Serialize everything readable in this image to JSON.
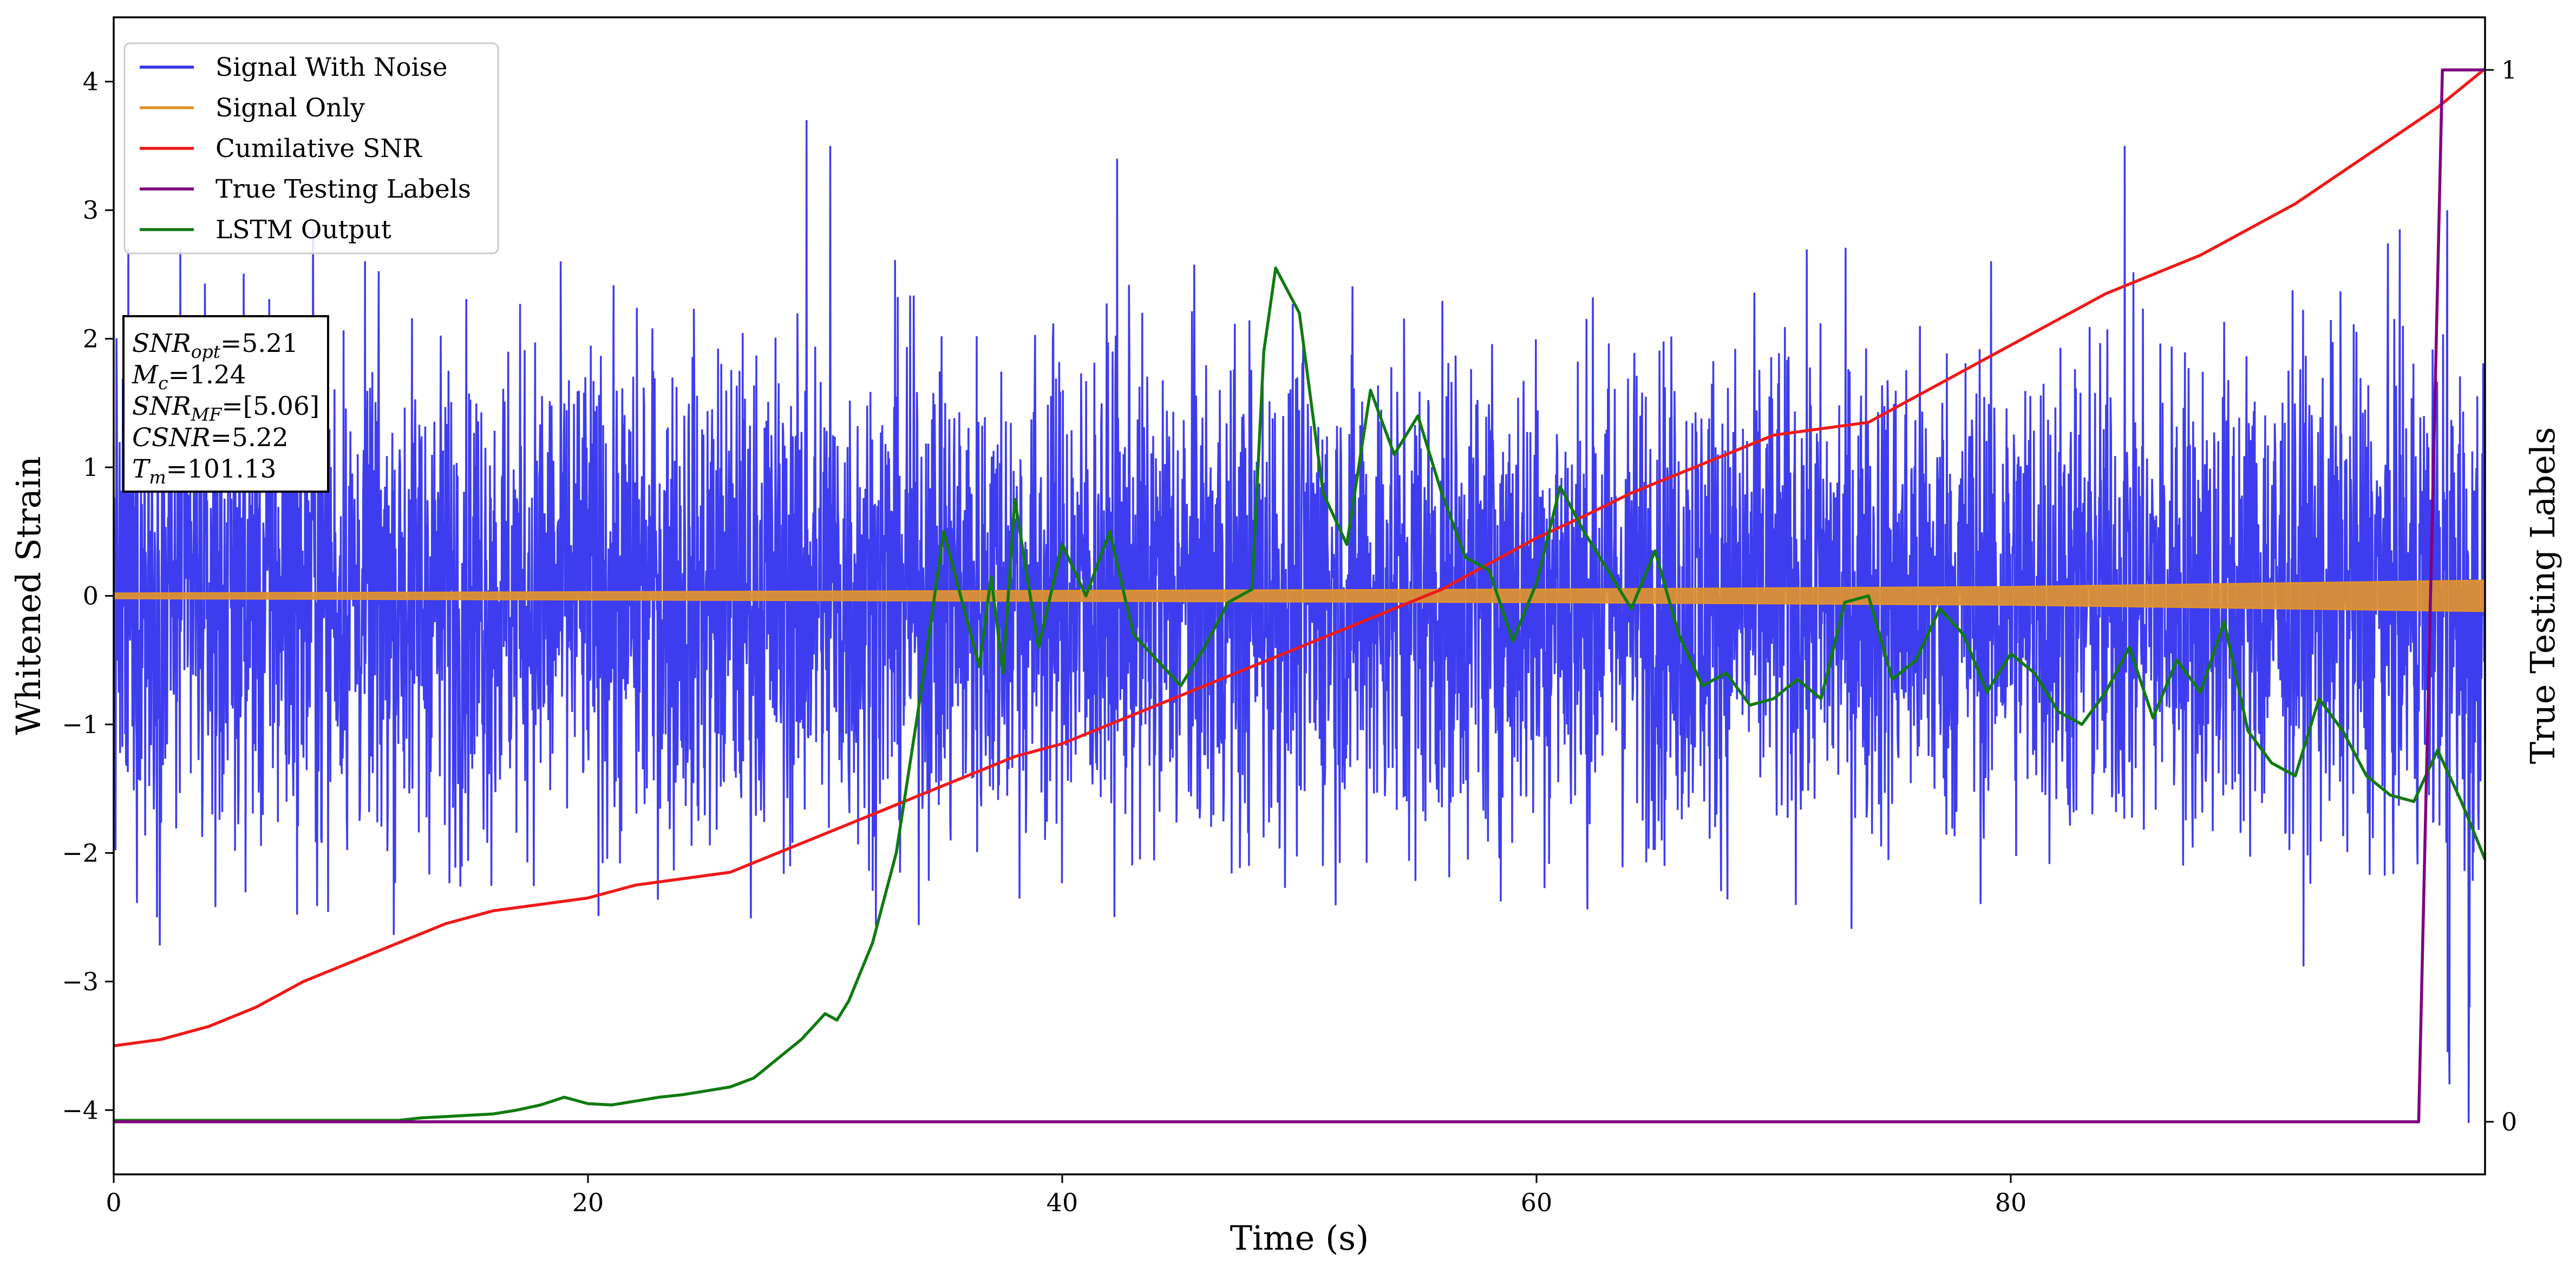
{
  "chart_data": {
    "type": "line",
    "xlabel": "Time (s)",
    "ylabel": "Whitened Strain",
    "y2label": "True Testing Labels",
    "xlim": [
      0,
      100
    ],
    "ylim": [
      -4.5,
      4.5
    ],
    "y2lim": [
      -0.05,
      1.05
    ],
    "xticks": [
      0,
      20,
      40,
      60,
      80
    ],
    "yticks": [
      -4,
      -3,
      -2,
      -1,
      0,
      1,
      2,
      3,
      4
    ],
    "y2ticks": [
      0,
      1
    ],
    "grid": false,
    "legend_position": "top-left",
    "colors": {
      "signal_with_noise": "#3333ee",
      "signal_only": "#e0922e",
      "cumulative_snr": "#ee1a1a",
      "true_labels": "#800080",
      "lstm_output": "#117a11"
    },
    "series": [
      {
        "name": "Signal With Noise",
        "axis": "left",
        "description_values": {
          "center": 0.0,
          "typical_abs_peak": 2.0,
          "extreme_min": -4.1,
          "extreme_max": 3.7
        }
      },
      {
        "name": "Signal Only",
        "axis": "left",
        "envelope": {
          "x": [
            0,
            20,
            40,
            60,
            80,
            100
          ],
          "amplitude": [
            0.02,
            0.03,
            0.04,
            0.05,
            0.07,
            0.12
          ]
        }
      },
      {
        "name": "Cumilative SNR",
        "axis": "left",
        "x": [
          0,
          2,
          4,
          6,
          8,
          10,
          12,
          14,
          16,
          18,
          20,
          22,
          24,
          26,
          28,
          30,
          32,
          34,
          36,
          38,
          40,
          42,
          44,
          46,
          48,
          50,
          52,
          54,
          56,
          58,
          60,
          62,
          64,
          66,
          68,
          70,
          72,
          74,
          76,
          78,
          80,
          82,
          84,
          86,
          88,
          90,
          92,
          94,
          96,
          98,
          100
        ],
        "values": [
          -3.5,
          -3.45,
          -3.35,
          -3.2,
          -3.0,
          -2.85,
          -2.7,
          -2.55,
          -2.45,
          -2.4,
          -2.35,
          -2.25,
          -2.2,
          -2.15,
          -2.0,
          -1.85,
          -1.7,
          -1.55,
          -1.4,
          -1.25,
          -1.15,
          -1.0,
          -0.85,
          -0.7,
          -0.55,
          -0.4,
          -0.25,
          -0.1,
          0.05,
          0.25,
          0.45,
          0.62,
          0.8,
          0.95,
          1.1,
          1.25,
          1.3,
          1.35,
          1.55,
          1.75,
          1.95,
          2.15,
          2.35,
          2.5,
          2.65,
          2.85,
          3.05,
          3.3,
          3.55,
          3.8,
          4.1
        ]
      },
      {
        "name": "True Testing Labels",
        "axis": "right",
        "x": [
          0,
          97.2,
          98.2,
          100
        ],
        "values": [
          0,
          0,
          1,
          1
        ]
      },
      {
        "name": "LSTM Output",
        "axis": "left",
        "x": [
          0,
          6,
          12,
          13,
          14,
          15,
          16,
          17,
          18,
          19,
          20,
          21,
          22,
          23,
          24,
          25,
          26,
          27,
          28,
          29,
          30,
          30.5,
          31,
          32,
          33,
          34,
          35,
          36,
          36.5,
          37,
          37.5,
          38,
          39,
          40,
          41,
          42,
          43,
          44,
          45,
          46,
          47,
          48,
          48.5,
          49,
          50,
          51,
          52,
          53,
          54,
          55,
          56,
          57,
          58,
          59,
          60,
          61,
          62,
          63,
          64,
          65,
          66,
          67,
          68,
          69,
          70,
          71,
          72,
          73,
          74,
          75,
          76,
          77,
          78,
          79,
          80,
          81,
          82,
          83,
          84,
          85,
          86,
          87,
          88,
          89,
          90,
          91,
          92,
          93,
          94,
          95,
          96,
          97,
          98,
          99,
          100
        ],
        "values": [
          -4.08,
          -4.08,
          -4.08,
          -4.06,
          -4.05,
          -4.04,
          -4.03,
          -4.0,
          -3.96,
          -3.9,
          -3.95,
          -3.96,
          -3.93,
          -3.9,
          -3.88,
          -3.85,
          -3.82,
          -3.75,
          -3.6,
          -3.45,
          -3.25,
          -3.3,
          -3.15,
          -2.7,
          -2.0,
          -0.8,
          0.5,
          -0.2,
          -0.55,
          0.15,
          -0.6,
          0.75,
          -0.4,
          0.4,
          0.0,
          0.5,
          -0.3,
          -0.5,
          -0.7,
          -0.4,
          -0.05,
          0.05,
          1.9,
          2.55,
          2.2,
          0.8,
          0.4,
          1.6,
          1.1,
          1.4,
          0.8,
          0.3,
          0.2,
          -0.35,
          0.1,
          0.85,
          0.5,
          0.2,
          -0.1,
          0.35,
          -0.3,
          -0.7,
          -0.6,
          -0.85,
          -0.8,
          -0.65,
          -0.8,
          -0.05,
          0.0,
          -0.65,
          -0.5,
          -0.1,
          -0.3,
          -0.75,
          -0.45,
          -0.6,
          -0.9,
          -1.0,
          -0.75,
          -0.4,
          -0.95,
          -0.5,
          -0.75,
          -0.2,
          -1.05,
          -1.3,
          -1.4,
          -0.8,
          -1.05,
          -1.4,
          -1.55,
          -1.6,
          -1.2,
          -1.6,
          -2.05
        ]
      }
    ],
    "annotation": {
      "lines": [
        {
          "var": "SNR",
          "sub": "opt",
          "value": "=5.21"
        },
        {
          "var": "M",
          "sub": "c",
          "value": "=1.24"
        },
        {
          "var": "SNR",
          "sub": "MF",
          "value": "=[5.06]"
        },
        {
          "var": "CSNR",
          "sub": "",
          "value": "=5.22"
        },
        {
          "var": "T",
          "sub": "m",
          "value": "=101.13"
        }
      ]
    }
  }
}
